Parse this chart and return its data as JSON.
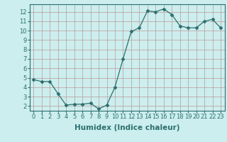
{
  "x": [
    0,
    1,
    2,
    3,
    4,
    5,
    6,
    7,
    8,
    9,
    10,
    11,
    12,
    13,
    14,
    15,
    16,
    17,
    18,
    19,
    20,
    21,
    22,
    23
  ],
  "y": [
    4.8,
    4.6,
    4.6,
    3.3,
    2.1,
    2.2,
    2.2,
    2.3,
    1.7,
    2.1,
    4.0,
    7.0,
    9.9,
    10.3,
    12.1,
    12.0,
    12.3,
    11.7,
    10.5,
    10.3,
    10.3,
    11.0,
    11.2,
    10.3
  ],
  "line_color": "#2d6e6e",
  "marker": "D",
  "marker_size": 2.5,
  "bg_color": "#cceeee",
  "grid_color": "#bb9999",
  "xlabel": "Humidex (Indice chaleur)",
  "xlim": [
    -0.5,
    23.5
  ],
  "ylim": [
    1.5,
    12.8
  ],
  "yticks": [
    2,
    3,
    4,
    5,
    6,
    7,
    8,
    9,
    10,
    11,
    12
  ],
  "xticks": [
    0,
    1,
    2,
    3,
    4,
    5,
    6,
    7,
    8,
    9,
    10,
    11,
    12,
    13,
    14,
    15,
    16,
    17,
    18,
    19,
    20,
    21,
    22,
    23
  ],
  "tick_label_fontsize": 6,
  "xlabel_fontsize": 7.5
}
